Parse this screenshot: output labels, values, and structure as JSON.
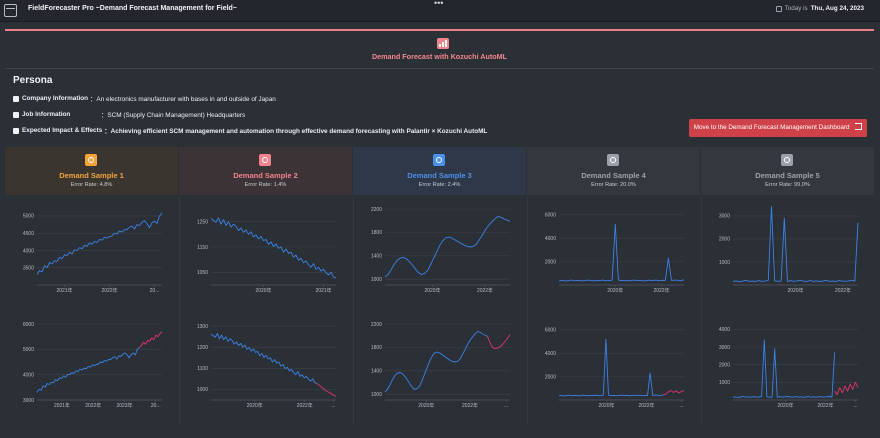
{
  "topbar": {
    "title": "FieldForecaster Pro ~Demand Forecast Management for Field~",
    "menu_dots": "•••",
    "today_label": "Today is",
    "today_date": "Thu, Aug 24, 2023"
  },
  "banner": {
    "title": "Demand Forecast with Kozuchi AutoML"
  },
  "persona": {
    "title": "Persona",
    "rows": [
      {
        "key": "Company Information",
        "value": "：An electronics manufacturer with bases in and outside of Japan"
      },
      {
        "key": "Job Information",
        "value": "：SCM (Supply Chain Management) Headquarters"
      },
      {
        "key": "Expected Impact & Effects",
        "value": "：Achieving efficient SCM management and automation through effective demand forecasting with Palantir × Kozuchi AutoML"
      }
    ],
    "dashboard_button": "Move to the Demand Forecast Management Dashboard"
  },
  "colors": {
    "line": "#3b82e6",
    "forecast": "#e0356a",
    "grid": "#3c4149",
    "axis_text": "#b8bdc5"
  },
  "samples": [
    {
      "name": "Demand Sample 1",
      "error": "Error Rate: 4.8%",
      "color": "#f2a43a",
      "icon": "target-icon",
      "bg": "#3b3530"
    },
    {
      "name": "Demand Sample 2",
      "error": "Error Rate: 1.4%",
      "color": "#f1838c",
      "icon": "target-icon",
      "bg": "#3b3336"
    },
    {
      "name": "Demand Sample 3",
      "error": "Error Rate: 2.4%",
      "color": "#4a90e6",
      "icon": "target-icon",
      "bg": "#2f3848"
    },
    {
      "name": "Demand Sample 4",
      "error": "Error Rate: 20.0%",
      "color": "#9aa1ab",
      "icon": "target-icon",
      "bg": "#34373d"
    },
    {
      "name": "Demand Sample 5",
      "error": "Error Rate: 99.0%",
      "color": "#9aa1ab",
      "icon": "target-icon",
      "bg": "#34373d"
    }
  ],
  "chart_data": [
    {
      "type": "line",
      "sample": 1,
      "row": "history",
      "ylim": [
        3000,
        5200
      ],
      "yticks": [
        3500,
        4000,
        4500,
        5000
      ],
      "xticks": [
        {
          "label": "2021年",
          "at": 0.22
        },
        {
          "label": "2022年",
          "at": 0.58
        },
        {
          "label": "20...",
          "at": 0.94
        }
      ],
      "values": [
        3300,
        3420,
        3380,
        3560,
        3500,
        3650,
        3610,
        3700,
        3680,
        3800,
        3760,
        3880,
        3850,
        3950,
        3900,
        4020,
        4000,
        4080,
        4050,
        4150,
        4120,
        4220,
        4180,
        4260,
        4230,
        4320,
        4300,
        4380,
        4360,
        4400,
        4420,
        4500,
        4480,
        4560,
        4530,
        4600,
        4600,
        4680,
        4700,
        4620,
        4750,
        4720,
        4820,
        4860,
        4780,
        4660,
        4800,
        4850,
        4780,
        5000,
        5080
      ]
    },
    {
      "type": "line",
      "sample": 2,
      "row": "history",
      "ylim": [
        1000,
        1300
      ],
      "yticks": [
        1050,
        1150,
        1250
      ],
      "xticks": [
        {
          "label": "2020年",
          "at": 0.42
        },
        {
          "label": "2021年",
          "at": 0.9
        }
      ],
      "values": [
        1262,
        1255,
        1248,
        1265,
        1240,
        1258,
        1235,
        1250,
        1228,
        1240,
        1232,
        1215,
        1225,
        1208,
        1218,
        1200,
        1210,
        1190,
        1198,
        1182,
        1192,
        1175,
        1180,
        1160,
        1170,
        1152,
        1162,
        1145,
        1150,
        1130,
        1142,
        1125,
        1130,
        1110,
        1118,
        1098,
        1105,
        1088,
        1095,
        1080,
        1070,
        1085,
        1062,
        1070,
        1055,
        1062,
        1048,
        1040,
        1050,
        1032,
        1028
      ]
    },
    {
      "type": "line",
      "sample": 3,
      "row": "history",
      "ylim": [
        900,
        2200
      ],
      "yticks": [
        1000,
        1400,
        1800,
        2200
      ],
      "xticks": [
        {
          "label": "2020年",
          "at": 0.38
        },
        {
          "label": "2022年",
          "at": 0.8
        }
      ],
      "values": [
        1040,
        1080,
        1160,
        1250,
        1320,
        1360,
        1370,
        1350,
        1300,
        1240,
        1170,
        1110,
        1080,
        1100,
        1150,
        1250,
        1360,
        1470,
        1580,
        1660,
        1710,
        1720,
        1700,
        1670,
        1640,
        1610,
        1580,
        1560,
        1550,
        1560,
        1600,
        1680,
        1760,
        1850,
        1920,
        1980,
        2030,
        2070,
        2060,
        2030,
        2010,
        1990
      ]
    },
    {
      "type": "line",
      "sample": 4,
      "row": "history",
      "ylim": [
        0,
        6500
      ],
      "yticks": [
        2000,
        4000,
        6000
      ],
      "xticks": [
        {
          "label": "2020年",
          "at": 0.45
        },
        {
          "label": "2022年",
          "at": 0.82
        }
      ],
      "values": [
        350,
        400,
        330,
        380,
        420,
        360,
        400,
        380,
        350,
        420,
        390,
        360,
        400,
        380,
        420,
        360,
        390,
        410,
        5200,
        420,
        380,
        400,
        360,
        390,
        420,
        380,
        400,
        350,
        390,
        410,
        380,
        420,
        360,
        400,
        390,
        2300,
        380,
        420,
        400,
        360,
        450
      ]
    },
    {
      "type": "line",
      "sample": 5,
      "row": "history",
      "ylim": [
        0,
        3300
      ],
      "yticks": [
        1000,
        2000,
        3000
      ],
      "xticks": [
        {
          "label": "2020年",
          "at": 0.5
        },
        {
          "label": "2022年",
          "at": 0.88
        }
      ],
      "values": [
        150,
        180,
        140,
        170,
        200,
        160,
        180,
        150,
        190,
        160,
        170,
        200,
        3400,
        180,
        160,
        170,
        2900,
        150,
        190,
        160,
        180,
        200,
        170,
        150,
        190,
        160,
        180,
        150,
        170,
        200,
        160,
        180,
        150,
        190,
        170,
        160,
        180,
        200,
        170,
        2700
      ]
    },
    {
      "type": "line",
      "sample": 1,
      "row": "forecast",
      "ylim": [
        3000,
        6000
      ],
      "yticks": [
        3000,
        4000,
        5000,
        6000
      ],
      "xticks": [
        {
          "label": "2021年",
          "at": 0.2
        },
        {
          "label": "2022年",
          "at": 0.45
        },
        {
          "label": "2023年",
          "at": 0.7
        },
        {
          "label": "20...",
          "at": 0.95
        }
      ],
      "values": [
        3300,
        3420,
        3380,
        3560,
        3500,
        3650,
        3610,
        3700,
        3680,
        3800,
        3760,
        3880,
        3850,
        3950,
        3900,
        4020,
        4000,
        4080,
        4050,
        4150,
        4120,
        4220,
        4180,
        4260,
        4230,
        4320,
        4300,
        4380,
        4360,
        4400,
        4420,
        4500,
        4480,
        4560,
        4530,
        4600,
        4600,
        4680,
        4700,
        4620,
        4750,
        4720,
        4820,
        4860,
        4780,
        4660,
        4800,
        4850,
        4780,
        5000,
        5080
      ],
      "forecast": [
        5080,
        5150,
        5280,
        5200,
        5360,
        5320,
        5450,
        5380,
        5560,
        5500,
        5620,
        5700
      ]
    },
    {
      "type": "line",
      "sample": 2,
      "row": "forecast",
      "ylim": [
        950,
        1310
      ],
      "yticks": [
        1000,
        1100,
        1200,
        1300
      ],
      "xticks": [
        {
          "label": "2020年",
          "at": 0.35
        },
        {
          "label": "2022年",
          "at": 0.75
        },
        {
          "label": "...",
          "at": 0.98
        }
      ],
      "values": [
        1262,
        1255,
        1248,
        1265,
        1240,
        1258,
        1235,
        1250,
        1228,
        1240,
        1232,
        1215,
        1225,
        1208,
        1218,
        1200,
        1210,
        1190,
        1198,
        1182,
        1192,
        1175,
        1180,
        1160,
        1170,
        1152,
        1162,
        1145,
        1150,
        1130,
        1142,
        1125,
        1130,
        1110,
        1118,
        1098,
        1105,
        1088,
        1095,
        1080,
        1070,
        1085,
        1062,
        1070,
        1055,
        1062,
        1048,
        1040,
        1050,
        1032,
        1028
      ],
      "forecast": [
        1028,
        1020,
        1012,
        1005,
        995,
        990,
        985,
        978,
        972,
        968
      ]
    },
    {
      "type": "line",
      "sample": 3,
      "row": "forecast",
      "ylim": [
        900,
        2200
      ],
      "yticks": [
        1000,
        1400,
        1800,
        2200
      ],
      "xticks": [
        {
          "label": "2020年",
          "at": 0.33
        },
        {
          "label": "2022年",
          "at": 0.68
        },
        {
          "label": "...",
          "at": 0.97
        }
      ],
      "values": [
        1040,
        1080,
        1160,
        1250,
        1320,
        1360,
        1370,
        1350,
        1300,
        1240,
        1170,
        1110,
        1080,
        1100,
        1150,
        1250,
        1360,
        1470,
        1580,
        1660,
        1710,
        1720,
        1700,
        1670,
        1640,
        1610,
        1580,
        1560,
        1550,
        1560,
        1600,
        1680,
        1760,
        1850,
        1920,
        1980,
        2030,
        2070,
        2060,
        2030,
        2010,
        1990
      ],
      "forecast": [
        1990,
        1880,
        1800,
        1780,
        1790,
        1810,
        1850,
        1900,
        1960,
        2020
      ]
    },
    {
      "type": "line",
      "sample": 4,
      "row": "forecast",
      "ylim": [
        0,
        6500
      ],
      "yticks": [
        2000,
        4000,
        6000
      ],
      "xticks": [
        {
          "label": "2020年",
          "at": 0.38
        },
        {
          "label": "2022年",
          "at": 0.7
        },
        {
          "label": "...",
          "at": 0.98
        }
      ],
      "values": [
        350,
        400,
        330,
        380,
        420,
        360,
        400,
        380,
        350,
        420,
        390,
        360,
        400,
        380,
        420,
        360,
        390,
        410,
        5200,
        420,
        380,
        400,
        360,
        390,
        420,
        380,
        400,
        350,
        390,
        410,
        380,
        420,
        360,
        400,
        390,
        2300,
        380,
        420,
        400,
        360,
        450
      ],
      "forecast": [
        450,
        500,
        700,
        800,
        650,
        780,
        600,
        720,
        800
      ]
    },
    {
      "type": "line",
      "sample": 5,
      "row": "forecast",
      "ylim": [
        0,
        4300
      ],
      "yticks": [
        1000,
        2000,
        3000,
        4000
      ],
      "xticks": [
        {
          "label": "2020年",
          "at": 0.42
        },
        {
          "label": "2022年",
          "at": 0.74
        },
        {
          "label": "...",
          "at": 0.98
        }
      ],
      "values": [
        150,
        180,
        140,
        170,
        200,
        160,
        180,
        150,
        190,
        160,
        170,
        200,
        3400,
        180,
        160,
        170,
        2900,
        150,
        190,
        160,
        180,
        200,
        170,
        150,
        190,
        160,
        180,
        150,
        170,
        200,
        160,
        180,
        150,
        190,
        170,
        160,
        180,
        200,
        170,
        2700
      ],
      "forecast": [
        500,
        300,
        700,
        400,
        800,
        500,
        900,
        600,
        1000,
        700
      ]
    }
  ]
}
